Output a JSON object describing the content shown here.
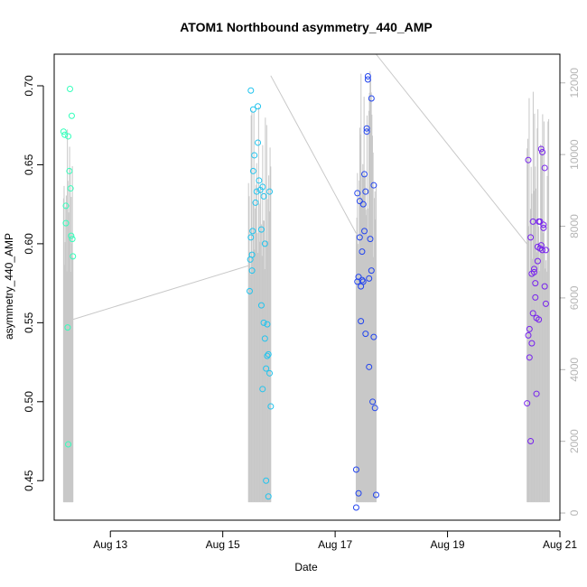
{
  "chart_data": {
    "type": "scatter",
    "title": "ATOM1 Northbound asymmetry_440_AMP",
    "xlabel": "Date",
    "ylabel": "asymmetry_440_AMP",
    "xlim": [
      "2020-08-12 00:00",
      "2020-08-21 00:00"
    ],
    "ylim": [
      0.425,
      0.72
    ],
    "y2lim": [
      -200,
      12800
    ],
    "x_ticks": [
      {
        "date": "2020-08-13 00:00",
        "label": "Aug 13"
      },
      {
        "date": "2020-08-15 00:00",
        "label": "Aug 15"
      },
      {
        "date": "2020-08-17 00:00",
        "label": "Aug 17"
      },
      {
        "date": "2020-08-19 00:00",
        "label": "Aug 19"
      },
      {
        "date": "2020-08-21 00:00",
        "label": "Aug 21"
      }
    ],
    "y_ticks": [
      "0.45",
      "0.50",
      "0.55",
      "0.60",
      "0.65",
      "0.70"
    ],
    "y2_ticks": [
      "0",
      "2000",
      "4000",
      "6000",
      "8000",
      "10000",
      "12000"
    ],
    "grid": false,
    "colors": {
      "axis": "#000000",
      "right_axis": "#b5b5b5",
      "count_line": "#c8c8c8"
    },
    "series": [
      {
        "color": "#33ffbb",
        "points": [
          [
            "2020-08-12 04:00",
            0.671
          ],
          [
            "2020-08-12 04:30",
            0.669
          ],
          [
            "2020-08-12 05:00",
            0.624
          ],
          [
            "2020-08-12 05:00",
            0.613
          ],
          [
            "2020-08-12 05:45",
            0.547
          ],
          [
            "2020-08-12 06:00",
            0.473
          ],
          [
            "2020-08-12 06:00",
            0.668
          ],
          [
            "2020-08-12 06:30",
            0.646
          ],
          [
            "2020-08-12 06:45",
            0.698
          ],
          [
            "2020-08-12 07:00",
            0.635
          ],
          [
            "2020-08-12 07:15",
            0.605
          ],
          [
            "2020-08-12 07:30",
            0.681
          ],
          [
            "2020-08-12 07:45",
            0.603
          ],
          [
            "2020-08-12 08:00",
            0.592
          ]
        ]
      },
      {
        "color": "#22c4ee",
        "points": [
          [
            "2020-08-15 11:30",
            0.57
          ],
          [
            "2020-08-15 11:45",
            0.59
          ],
          [
            "2020-08-15 12:00",
            0.604
          ],
          [
            "2020-08-15 12:00",
            0.697
          ],
          [
            "2020-08-15 12:30",
            0.583
          ],
          [
            "2020-08-15 12:30",
            0.593
          ],
          [
            "2020-08-15 12:45",
            0.608
          ],
          [
            "2020-08-15 13:00",
            0.685
          ],
          [
            "2020-08-15 13:00",
            0.646
          ],
          [
            "2020-08-15 13:30",
            0.656
          ],
          [
            "2020-08-15 14:00",
            0.626
          ],
          [
            "2020-08-15 14:30",
            0.633
          ],
          [
            "2020-08-15 15:00",
            0.687
          ],
          [
            "2020-08-15 15:00",
            0.664
          ],
          [
            "2020-08-15 15:30",
            0.64
          ],
          [
            "2020-08-15 16:00",
            0.634
          ],
          [
            "2020-08-15 16:30",
            0.609
          ],
          [
            "2020-08-15 16:30",
            0.561
          ],
          [
            "2020-08-15 17:00",
            0.508
          ],
          [
            "2020-08-15 17:00",
            0.636
          ],
          [
            "2020-08-15 17:30",
            0.55
          ],
          [
            "2020-08-15 17:30",
            0.63
          ],
          [
            "2020-08-15 18:00",
            0.6
          ],
          [
            "2020-08-15 18:00",
            0.54
          ],
          [
            "2020-08-15 18:30",
            0.521
          ],
          [
            "2020-08-15 18:30",
            0.45
          ],
          [
            "2020-08-15 19:00",
            0.549
          ],
          [
            "2020-08-15 19:00",
            0.529
          ],
          [
            "2020-08-15 19:30",
            0.53
          ],
          [
            "2020-08-15 19:30",
            0.44
          ],
          [
            "2020-08-15 20:00",
            0.518
          ],
          [
            "2020-08-15 20:00",
            0.633
          ],
          [
            "2020-08-15 20:30",
            0.497
          ]
        ]
      },
      {
        "color": "#2244ee",
        "points": [
          [
            "2020-08-17 09:00",
            0.457
          ],
          [
            "2020-08-17 09:00",
            0.433
          ],
          [
            "2020-08-17 09:30",
            0.576
          ],
          [
            "2020-08-17 09:30",
            0.632
          ],
          [
            "2020-08-17 10:00",
            0.442
          ],
          [
            "2020-08-17 10:00",
            0.579
          ],
          [
            "2020-08-17 10:30",
            0.604
          ],
          [
            "2020-08-17 10:30",
            0.627
          ],
          [
            "2020-08-17 11:00",
            0.551
          ],
          [
            "2020-08-17 11:00",
            0.573
          ],
          [
            "2020-08-17 11:30",
            0.595
          ],
          [
            "2020-08-17 11:30",
            0.577
          ],
          [
            "2020-08-17 12:00",
            0.625
          ],
          [
            "2020-08-17 12:00",
            0.576
          ],
          [
            "2020-08-17 12:30",
            0.644
          ],
          [
            "2020-08-17 12:30",
            0.608
          ],
          [
            "2020-08-17 13:00",
            0.633
          ],
          [
            "2020-08-17 13:00",
            0.543
          ],
          [
            "2020-08-17 13:30",
            0.673
          ],
          [
            "2020-08-17 13:30",
            0.671
          ],
          [
            "2020-08-17 14:00",
            0.706
          ],
          [
            "2020-08-17 14:00",
            0.704
          ],
          [
            "2020-08-17 14:30",
            0.578
          ],
          [
            "2020-08-17 14:30",
            0.522
          ],
          [
            "2020-08-17 15:00",
            0.603
          ],
          [
            "2020-08-17 15:30",
            0.692
          ],
          [
            "2020-08-17 15:30",
            0.583
          ],
          [
            "2020-08-17 16:00",
            0.5
          ],
          [
            "2020-08-17 16:30",
            0.637
          ],
          [
            "2020-08-17 16:30",
            0.541
          ],
          [
            "2020-08-17 17:00",
            0.496
          ],
          [
            "2020-08-17 17:30",
            0.441
          ]
        ]
      },
      {
        "color": "#7722ee",
        "points": [
          [
            "2020-08-20 10:00",
            0.499
          ],
          [
            "2020-08-20 10:30",
            0.653
          ],
          [
            "2020-08-20 10:30",
            0.542
          ],
          [
            "2020-08-20 11:00",
            0.546
          ],
          [
            "2020-08-20 11:00",
            0.528
          ],
          [
            "2020-08-20 11:30",
            0.475
          ],
          [
            "2020-08-20 11:30",
            0.604
          ],
          [
            "2020-08-20 12:00",
            0.537
          ],
          [
            "2020-08-20 12:00",
            0.581
          ],
          [
            "2020-08-20 12:30",
            0.614
          ],
          [
            "2020-08-20 12:30",
            0.556
          ],
          [
            "2020-08-20 13:00",
            0.582
          ],
          [
            "2020-08-20 13:00",
            0.584
          ],
          [
            "2020-08-20 13:30",
            0.575
          ],
          [
            "2020-08-20 13:30",
            0.566
          ],
          [
            "2020-08-20 14:00",
            0.505
          ],
          [
            "2020-08-20 14:00",
            0.553
          ],
          [
            "2020-08-20 14:30",
            0.589
          ],
          [
            "2020-08-20 14:30",
            0.598
          ],
          [
            "2020-08-20 15:00",
            0.614
          ],
          [
            "2020-08-20 15:00",
            0.552
          ],
          [
            "2020-08-20 15:30",
            0.614
          ],
          [
            "2020-08-20 15:30",
            0.597
          ],
          [
            "2020-08-20 16:00",
            0.66
          ],
          [
            "2020-08-20 16:00",
            0.599
          ],
          [
            "2020-08-20 16:30",
            0.658
          ],
          [
            "2020-08-20 16:30",
            0.596
          ],
          [
            "2020-08-20 17:00",
            0.612
          ],
          [
            "2020-08-20 17:00",
            0.61
          ],
          [
            "2020-08-20 17:30",
            0.573
          ],
          [
            "2020-08-20 17:30",
            0.648
          ],
          [
            "2020-08-20 18:00",
            0.562
          ],
          [
            "2020-08-20 18:00",
            0.596
          ]
        ]
      }
    ],
    "count_series": {
      "axis": "right",
      "bursts": [
        {
          "from": "2020-08-12 04:00",
          "to": "2020-08-12 08:00",
          "n": 18,
          "low": 300,
          "high": 11300
        },
        {
          "from": "2020-08-15 11:00",
          "to": "2020-08-15 20:30",
          "n": 34,
          "low": 300,
          "high": 11400
        },
        {
          "from": "2020-08-17 09:00",
          "to": "2020-08-17 17:30",
          "n": 34,
          "low": 300,
          "high": 12500
        },
        {
          "from": "2020-08-20 10:00",
          "to": "2020-08-20 19:30",
          "n": 34,
          "low": 300,
          "high": 11800
        }
      ],
      "connectors": [
        [
          [
            "2020-08-12 08:00",
            5400
          ],
          [
            "2020-08-15 11:00",
            6900
          ]
        ],
        [
          [
            "2020-08-15 20:30",
            12200
          ],
          [
            "2020-08-17 09:00",
            7800
          ]
        ],
        [
          [
            "2020-08-17 17:30",
            12800
          ],
          [
            "2020-08-20 10:00",
            7500
          ]
        ]
      ]
    }
  }
}
